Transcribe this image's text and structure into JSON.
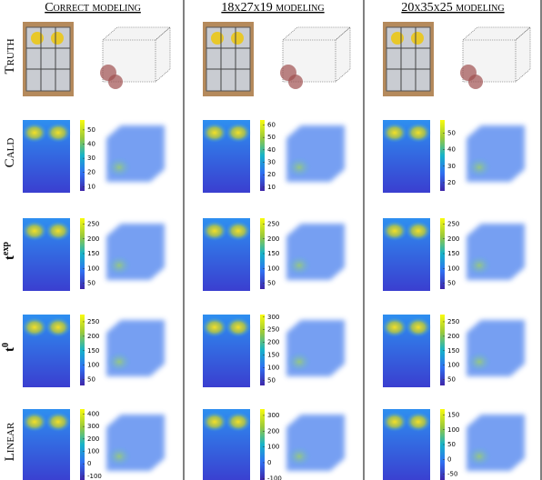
{
  "columns": [
    "Correct modeling",
    "18x27x19 modeling",
    "20x35x25 modeling"
  ],
  "rows": [
    {
      "label": "Truth"
    },
    {
      "label": "Cald",
      "colorbars": [
        {
          "lim": [
            7,
            57
          ],
          "ticks": [
            10,
            20,
            30,
            40,
            50
          ]
        },
        {
          "lim": [
            7,
            64
          ],
          "ticks": [
            10,
            20,
            30,
            40,
            50,
            60
          ]
        },
        {
          "lim": [
            15,
            58
          ],
          "ticks": [
            20,
            30,
            40,
            50
          ]
        }
      ]
    },
    {
      "label": "t",
      "superscript": "exp",
      "colorbars": [
        {
          "lim": [
            30,
            270
          ],
          "ticks": [
            50,
            100,
            150,
            200,
            250
          ]
        },
        {
          "lim": [
            30,
            270
          ],
          "ticks": [
            50,
            100,
            150,
            200,
            250
          ]
        },
        {
          "lim": [
            30,
            270
          ],
          "ticks": [
            50,
            100,
            150,
            200,
            250
          ]
        }
      ]
    },
    {
      "label": "t",
      "superscript": "0",
      "colorbars": [
        {
          "lim": [
            30,
            275
          ],
          "ticks": [
            50,
            100,
            150,
            200,
            250
          ]
        },
        {
          "lim": [
            30,
            310
          ],
          "ticks": [
            50,
            100,
            150,
            200,
            250,
            300
          ]
        },
        {
          "lim": [
            30,
            275
          ],
          "ticks": [
            50,
            100,
            150,
            200,
            250
          ]
        }
      ]
    },
    {
      "label": "Linear",
      "colorbars": [
        {
          "lim": [
            -130,
            440
          ],
          "ticks": [
            -100,
            0,
            100,
            200,
            300,
            400
          ]
        },
        {
          "lim": [
            -110,
            340
          ],
          "ticks": [
            -100,
            0,
            100,
            200,
            300
          ]
        },
        {
          "lim": [
            -70,
            170
          ],
          "ticks": [
            -50,
            0,
            50,
            100,
            150
          ]
        }
      ]
    }
  ]
}
